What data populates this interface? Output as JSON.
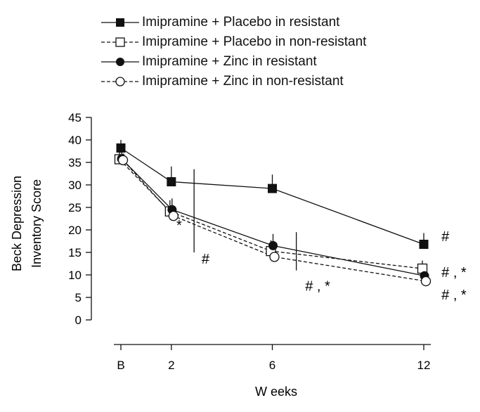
{
  "chart_data": {
    "type": "line",
    "title": "",
    "xlabel": "W eeks",
    "ylabel_line1": "Beck  Depression",
    "ylabel_line2": "Inventory Score",
    "categories": [
      "B",
      "2",
      "6",
      "12"
    ],
    "x_positions_weeks": [
      0,
      2,
      6,
      12
    ],
    "ylim": [
      0,
      45
    ],
    "yticks": [
      "0",
      "5",
      "10",
      "15",
      "20",
      "25",
      "30",
      "35",
      "40",
      "45"
    ],
    "grid": false,
    "legend_position": "top",
    "series": [
      {
        "name": "Imipramine + Placebo in resistant",
        "marker": "filled-square",
        "line": "solid",
        "values": [
          38.2,
          30.7,
          29.2,
          16.8
        ],
        "error_up": [
          1.8,
          3.4,
          3.1,
          2.5
        ]
      },
      {
        "name": "Imipramine + Placebo in non-resistant",
        "marker": "open-square",
        "line": "dashed",
        "values": [
          35.7,
          24.1,
          15.3,
          11.4
        ],
        "error_up": [
          1.5,
          2.5,
          2.4,
          1.8
        ]
      },
      {
        "name": "Imipramine + Zinc in resistant",
        "marker": "filled-circle",
        "line": "solid",
        "values": [
          35.8,
          24.5,
          16.5,
          9.8
        ],
        "error_up": [
          1.5,
          2.5,
          2.6,
          1.9
        ]
      },
      {
        "name": "Imipramine + Zinc in non-resistant",
        "marker": "open-circle",
        "line": "dashed",
        "values": [
          35.5,
          23.1,
          14.0,
          8.6
        ],
        "error_up": [
          1.5,
          2.2,
          1.9,
          1.6
        ]
      }
    ],
    "annotations": [
      {
        "text": "*",
        "x_weeks": 2.2,
        "y_value": 20.0
      },
      {
        "text": "#",
        "x_weeks": 3.2,
        "y_value": 12.5
      },
      {
        "text": "# , *",
        "x_weeks": 7.3,
        "y_value": 6.5
      },
      {
        "text": "#",
        "x_weeks": 12.7,
        "y_value": 17.5
      },
      {
        "text": "# , *",
        "x_weeks": 12.7,
        "y_value": 9.5
      },
      {
        "text": "# , *",
        "x_weeks": 12.7,
        "y_value": 4.5
      }
    ],
    "comparison_bars": [
      {
        "x_weeks": 2.9,
        "y_from": 15,
        "y_to": 33.5
      },
      {
        "x_weeks": 6.95,
        "y_from": 11,
        "y_to": 19.5
      }
    ]
  }
}
